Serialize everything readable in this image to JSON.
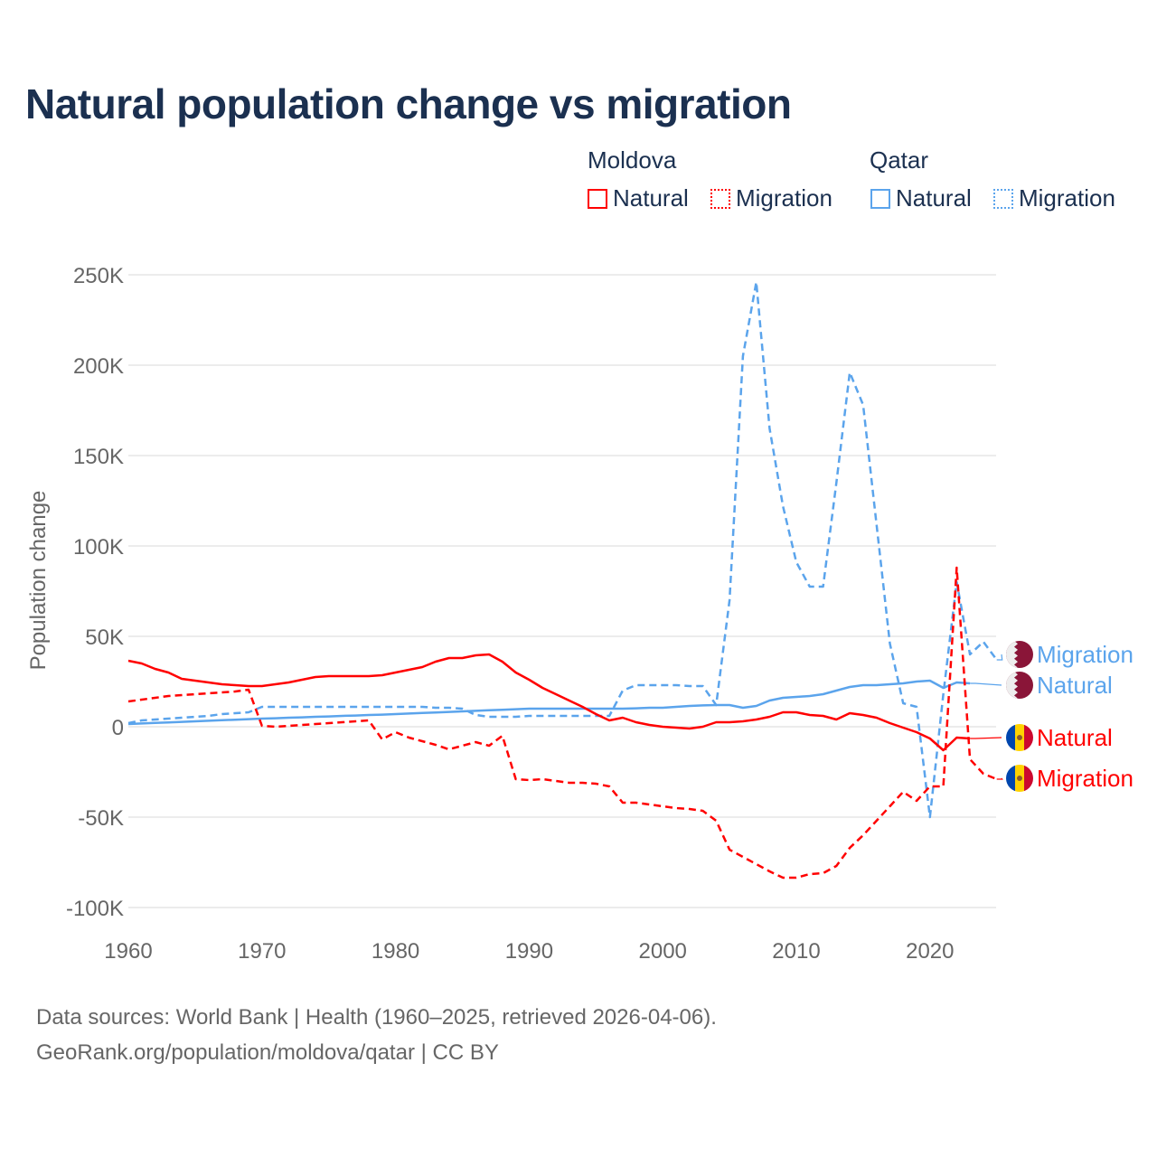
{
  "title": "Natural population change vs migration",
  "legend": {
    "groups": [
      {
        "name": "Moldova",
        "color": "#ff0000",
        "items": [
          "Natural",
          "Migration"
        ]
      },
      {
        "name": "Qatar",
        "color": "#5ba4ec",
        "items": [
          "Natural",
          "Migration"
        ]
      }
    ]
  },
  "footer": {
    "line1": "Data sources: World Bank | Health (1960–2025, retrieved 2026-04-06).",
    "line2": "GeoRank.org/population/moldova/qatar | CC BY"
  },
  "chart_data": {
    "type": "line",
    "title": "Natural population change vs migration",
    "xlabel": "",
    "ylabel": "Population change",
    "xlim": [
      1960,
      2025
    ],
    "ylim": [
      -100000,
      250000
    ],
    "x_ticks": [
      "1960",
      "1970",
      "1980",
      "1990",
      "2000",
      "2010",
      "2020"
    ],
    "y_ticks": [
      {
        "value": 250000,
        "label": "250K"
      },
      {
        "value": 200000,
        "label": "200K"
      },
      {
        "value": 150000,
        "label": "150K"
      },
      {
        "value": 100000,
        "label": "100K"
      },
      {
        "value": 50000,
        "label": "50K"
      },
      {
        "value": 0,
        "label": "0"
      },
      {
        "value": -50000,
        "label": "-50K"
      },
      {
        "value": -100000,
        "label": "-100K"
      }
    ],
    "grid": true,
    "start_year": 1960,
    "series": [
      {
        "name": "Qatar Migration",
        "label": "Migration",
        "country": "Qatar",
        "color": "#5ba4ec",
        "dashed": true,
        "values_k": [
          2,
          3.5,
          4,
          4.5,
          5,
          5.5,
          6,
          7,
          7.5,
          8,
          11,
          11,
          11,
          11,
          11,
          11,
          11,
          11,
          11,
          11,
          11,
          11,
          11,
          10.5,
          10.5,
          10,
          6.5,
          5.5,
          5.5,
          5.5,
          6,
          6,
          6,
          6,
          6,
          6,
          6,
          20,
          23,
          23,
          23,
          23,
          22.5,
          22.5,
          12,
          70,
          205,
          246,
          165,
          122,
          91,
          77.5,
          77.5,
          135,
          196,
          178,
          112,
          46,
          13,
          11,
          -50,
          18,
          80,
          40,
          47,
          37
        ]
      },
      {
        "name": "Qatar Natural",
        "label": "Natural",
        "country": "Qatar",
        "color": "#5ba4ec",
        "dashed": false,
        "values_k": [
          1.5,
          1.8,
          2.1,
          2.4,
          2.7,
          3,
          3.3,
          3.6,
          3.9,
          4.2,
          4.5,
          4.7,
          5,
          5.2,
          5.5,
          5.7,
          6,
          6.2,
          6.5,
          6.7,
          7,
          7.3,
          7.6,
          7.9,
          8.2,
          8.5,
          8.8,
          9.1,
          9.4,
          9.7,
          10,
          10,
          10,
          10,
          10,
          10,
          10,
          10,
          10.2,
          10.5,
          10.5,
          11,
          11.5,
          11.8,
          12,
          12,
          10.5,
          11.5,
          14.5,
          16,
          16.5,
          17,
          18,
          20,
          22,
          23,
          23,
          23.5,
          24,
          25,
          25.5,
          21.5,
          24.5,
          24
        ]
      },
      {
        "name": "Moldova Natural",
        "label": "Natural",
        "country": "Moldova",
        "color": "#ff0000",
        "dashed": false,
        "values_k": [
          36.5,
          35,
          32,
          30,
          26.5,
          25.5,
          24.5,
          23.5,
          23,
          22.5,
          22.5,
          23.5,
          24.5,
          26,
          27.5,
          28,
          28,
          28,
          28,
          28.5,
          30,
          31.5,
          33,
          36,
          38,
          38,
          39.5,
          40,
          36,
          30,
          26,
          21.5,
          18,
          14.5,
          11,
          7,
          3.5,
          5,
          2.5,
          1,
          0,
          -0.5,
          -1,
          0,
          2.5,
          2.5,
          3,
          4,
          5.5,
          8,
          8,
          6.5,
          6,
          4,
          7.5,
          6.5,
          5,
          2,
          -0.5,
          -3,
          -6.5,
          -13,
          -6,
          -6.5
        ]
      },
      {
        "name": "Moldova Migration",
        "label": "Migration",
        "country": "Moldova",
        "color": "#ff0000",
        "dashed": true,
        "values_k": [
          14,
          15,
          16,
          17,
          17.5,
          18,
          18.5,
          19,
          19.5,
          20.5,
          0.5,
          0,
          0.5,
          1,
          1.5,
          2,
          2.5,
          3,
          3.5,
          -7,
          -3,
          -6,
          -8,
          -10,
          -12.5,
          -10.5,
          -8.5,
          -10.5,
          -5,
          -29,
          -29.5,
          -29,
          -30,
          -31,
          -31,
          -31.5,
          -33,
          -42,
          -42,
          -43,
          -44,
          -45,
          -45.5,
          -46.5,
          -52,
          -68,
          -72,
          -76,
          -80,
          -83.5,
          -83.5,
          -81.5,
          -81,
          -77,
          -67,
          -60,
          -52,
          -44,
          -36,
          -41,
          -33,
          -33,
          88,
          -18,
          -26,
          -29
        ]
      }
    ],
    "end_labels": [
      "Migration",
      "Natural",
      "Natural",
      "Migration"
    ]
  }
}
